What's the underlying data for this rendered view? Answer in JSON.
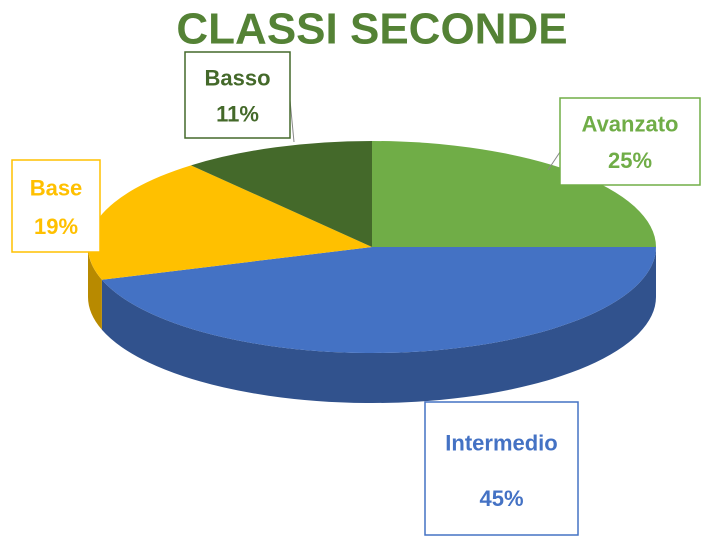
{
  "chart_data": {
    "type": "pie",
    "title": "CLASSI SECONDE",
    "categories": [
      "Avanzato",
      "Intermedio",
      "Base",
      "Basso"
    ],
    "values": [
      25,
      45,
      19,
      11
    ],
    "value_labels": [
      "25%",
      "45%",
      "19%",
      "11%"
    ],
    "colors": [
      "#70ad47",
      "#4472c4",
      "#ffc000",
      "#44692a"
    ]
  }
}
